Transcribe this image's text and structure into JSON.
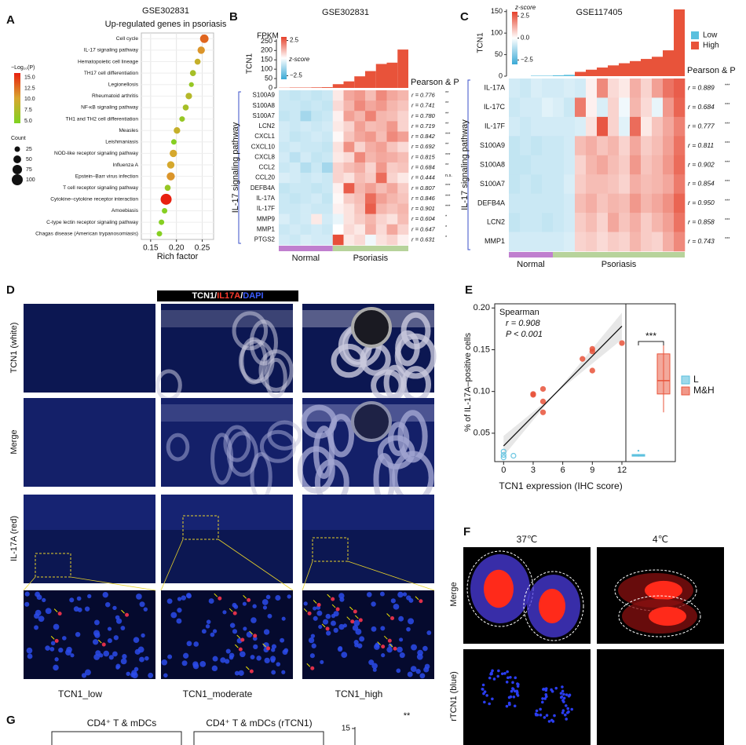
{
  "figure": {
    "panel_letters": [
      "A",
      "B",
      "C",
      "D",
      "E",
      "F",
      "G"
    ]
  },
  "chart_data": [
    {
      "type": "dot",
      "title": "GSE302831",
      "subtitle": "Up-regulated genes in psoriasis",
      "x_label": "Rich factor",
      "categories": [
        "Cell cycle",
        "IL-17 signaling pathway",
        "Hematopoietic cell lineage",
        "TH17 cell differentiation",
        "Legionellosis",
        "Rheumatoid arthritis",
        "NF-κB signaling pathway",
        "TH1 and TH2 cell differentiation",
        "Measles",
        "Leishmaniasis",
        "NOD-like receptor signaling pathway",
        "Influenza A",
        "Epstein–Barr virus infection",
        "T cell receptor signaling pathway",
        "Cytokine–cytokine receptor interaction",
        "Amoebiasis",
        "C-type lectin receptor signaling pathway",
        "Chagas disease (American trypanosomiasis)"
      ],
      "values": [
        0.254,
        0.248,
        0.241,
        0.232,
        0.229,
        0.224,
        0.218,
        0.211,
        0.201,
        0.195,
        0.194,
        0.189,
        0.189,
        0.183,
        0.18,
        0.177,
        0.171,
        0.167
      ],
      "sizes": [
        60,
        45,
        30,
        30,
        20,
        35,
        30,
        25,
        35,
        25,
        45,
        45,
        55,
        30,
        100,
        25,
        25,
        25
      ],
      "color_values": [
        13,
        11,
        9,
        7,
        6,
        8,
        7,
        6,
        9,
        5,
        10,
        10,
        11,
        6,
        16,
        5,
        5,
        5
      ],
      "xlim": [
        0.132,
        0.272
      ],
      "xticks": [
        {
          "value": 0.15,
          "label": "0.15"
        },
        {
          "value": 0.2,
          "label": "0.20"
        },
        {
          "value": 0.25,
          "label": "0.25"
        }
      ],
      "grid": true,
      "color_legend": {
        "title": "−Log₁₀(P)",
        "range": [
          4.5,
          16
        ],
        "colors": [
          "#7ed321",
          "#d9a62e",
          "#e8200f"
        ],
        "ticks": [
          {
            "value": 15,
            "label": "15.0"
          },
          {
            "value": 12.5,
            "label": "12.5"
          },
          {
            "value": 10,
            "label": "10.0"
          },
          {
            "value": 7.5,
            "label": "7.5"
          },
          {
            "value": 5,
            "label": "5.0"
          }
        ]
      },
      "size_legend": {
        "title": "Count",
        "ticks": [
          25,
          50,
          75,
          100
        ]
      }
    },
    {
      "type": "heatmap",
      "title": "GSE302831",
      "bar_label": "FPKM",
      "bar_axis_label": "TCN1",
      "bar_values": [
        1,
        2,
        2,
        3,
        4,
        20,
        35,
        62,
        90,
        128,
        135,
        205
      ],
      "bar_color": "#e8533a",
      "bar_ylim": [
        0,
        260
      ],
      "bar_yticks": [
        0,
        50,
        100,
        150,
        200,
        250
      ],
      "colorbar": {
        "title": "z-score",
        "range": [
          -3,
          3
        ],
        "ticks": [
          {
            "value": 2.5,
            "label": "2.5"
          },
          {
            "value": -2.5,
            "label": "−2.5"
          }
        ]
      },
      "rows": [
        "S100A9",
        "S100A8",
        "S100A7",
        "LCN2",
        "CXCL1",
        "CXCL10",
        "CXCL8",
        "CCL2",
        "CCL20",
        "DEFB4A",
        "IL-17A",
        "IL-17F",
        "MMP9",
        "MMP1",
        "PTGS2"
      ],
      "matrix": [
        [
          -0.7,
          -0.8,
          -0.7,
          -0.8,
          -0.7,
          0.3,
          1.2,
          1.4,
          0.9,
          1.6,
          1.2,
          1.0
        ],
        [
          -0.7,
          -0.7,
          -0.8,
          -0.7,
          -0.8,
          0.5,
          1.0,
          1.6,
          1.2,
          1.4,
          1.0,
          0.8
        ],
        [
          -0.8,
          -0.7,
          -1.2,
          -0.8,
          -0.7,
          0.2,
          1.3,
          1.0,
          1.7,
          1.0,
          0.9,
          0.6
        ],
        [
          -0.6,
          -0.7,
          -0.6,
          -0.7,
          -0.6,
          0.3,
          0.6,
          1.3,
          0.9,
          1.0,
          1.4,
          0.6
        ],
        [
          -0.6,
          -0.8,
          -0.7,
          -0.6,
          -0.7,
          0.1,
          0.8,
          1.2,
          1.4,
          0.9,
          1.6,
          1.3
        ],
        [
          -0.7,
          -0.6,
          -0.7,
          -0.7,
          -0.8,
          0.4,
          1.5,
          0.6,
          1.1,
          1.3,
          0.8,
          0.5
        ],
        [
          -0.6,
          -0.9,
          -0.6,
          -0.8,
          -0.7,
          0.3,
          0.5,
          1.6,
          1.0,
          1.2,
          1.1,
          0.9
        ],
        [
          -0.7,
          -0.6,
          -1.0,
          -0.7,
          -1.2,
          0.6,
          0.9,
          1.1,
          0.6,
          1.4,
          0.7,
          0.8
        ],
        [
          -0.5,
          -0.6,
          -0.7,
          -0.6,
          -0.7,
          0.6,
          0.4,
          0.9,
          0.7,
          2.0,
          0.6,
          0.3
        ],
        [
          -0.8,
          -0.7,
          -0.7,
          -0.8,
          -0.7,
          0.2,
          2.2,
          1.0,
          1.3,
          0.9,
          1.2,
          0.7
        ],
        [
          -0.7,
          -0.8,
          -0.7,
          -0.6,
          -0.8,
          0.1,
          0.7,
          0.9,
          2.0,
          1.3,
          1.0,
          0.8
        ],
        [
          -0.7,
          -0.7,
          -0.6,
          -0.7,
          -0.7,
          0.2,
          0.4,
          0.8,
          2.2,
          1.0,
          0.8,
          1.0
        ],
        [
          -0.5,
          -0.7,
          -0.6,
          0.3,
          -0.6,
          -0.3,
          0.4,
          0.7,
          1.0,
          0.6,
          0.4,
          0.9
        ],
        [
          -0.7,
          -0.6,
          -0.7,
          -0.6,
          -0.7,
          0.0,
          0.5,
          0.3,
          1.1,
          0.5,
          1.2,
          0.6
        ],
        [
          -0.6,
          -0.7,
          -0.5,
          -0.6,
          -0.6,
          2.4,
          0.3,
          0.5,
          -0.2,
          0.4,
          0.6,
          0.2
        ]
      ],
      "row_group": "IL-17 signaling pathway",
      "groups": [
        {
          "name": "Normal",
          "count": 5,
          "color": "#c07fcf"
        },
        {
          "name": "Psoriasis",
          "count": 7,
          "color": "#b7d39b"
        }
      ],
      "stat_title": "Pearson & P",
      "r_labels": [
        "r = 0.776",
        "r = 0.741",
        "r = 0.780",
        "r = 0.719",
        "r = 0.842",
        "r = 0.692",
        "r = 0.815",
        "r = 0.684",
        "r = 0.444",
        "r = 0.807",
        "r = 0.846",
        "r = 0.901",
        "r = 0.604",
        "r = 0.647",
        "r = 0.631"
      ],
      "sig": [
        "**",
        "**",
        "**",
        "**",
        "***",
        "**",
        "***",
        "**",
        "n.s.",
        "***",
        "***",
        "***",
        "*",
        "*",
        "*"
      ]
    },
    {
      "type": "heatmap",
      "title": "GSE117405",
      "bar_axis_label": "TCN1",
      "bar_values": [
        0,
        0,
        1,
        1,
        2,
        3,
        10,
        15,
        20,
        25,
        30,
        35,
        40,
        45,
        60,
        155
      ],
      "bar_levels": [
        0,
        0,
        0,
        0,
        0,
        0,
        1,
        1,
        1,
        1,
        1,
        1,
        1,
        1,
        1,
        1
      ],
      "levels": [
        {
          "name": "Low",
          "color": "#5bc0de"
        },
        {
          "name": "High",
          "color": "#e8533a"
        }
      ],
      "bar_ylim": [
        0,
        155
      ],
      "bar_yticks": [
        0,
        50,
        100,
        150
      ],
      "colorbar": {
        "title": "z-score",
        "range": [
          -3,
          3
        ],
        "ticks": [
          {
            "value": 2.5,
            "label": "2.5"
          },
          {
            "value": 0,
            "label": "0.0"
          },
          {
            "value": -2.5,
            "label": "−2.5"
          }
        ]
      },
      "rows": [
        "IL-17A",
        "IL-17C",
        "IL-17F",
        "S100A9",
        "S100A8",
        "S100A7",
        "DEFB4A",
        "LCN2",
        "MMP1"
      ],
      "matrix": [
        [
          -0.6,
          -0.7,
          -0.5,
          -0.6,
          -0.6,
          -0.5,
          -0.6,
          0.2,
          1.6,
          0.5,
          0.3,
          1.1,
          0.6,
          1.3,
          1.9,
          2.2
        ],
        [
          -0.7,
          -0.6,
          -0.6,
          -0.4,
          -0.5,
          -0.7,
          1.8,
          0.2,
          -0.5,
          0.6,
          -0.2,
          1.0,
          0.5,
          -0.3,
          1.4,
          2.1
        ],
        [
          -0.6,
          -0.7,
          -0.6,
          -0.6,
          -0.6,
          -0.6,
          -0.5,
          0.4,
          2.3,
          0.6,
          -0.4,
          2.0,
          0.3,
          0.8,
          1.2,
          1.7
        ],
        [
          -0.8,
          -0.7,
          -0.8,
          -0.7,
          -0.7,
          -0.6,
          0.9,
          1.1,
          0.8,
          1.0,
          0.6,
          1.2,
          0.7,
          0.9,
          1.3,
          1.9
        ],
        [
          -0.8,
          -0.8,
          -0.7,
          -0.7,
          -0.7,
          -0.6,
          0.6,
          1.0,
          1.2,
          0.9,
          0.7,
          1.4,
          0.8,
          1.0,
          1.4,
          2.0
        ],
        [
          -0.8,
          -0.7,
          -0.8,
          -0.7,
          -0.7,
          -0.5,
          0.7,
          0.9,
          0.9,
          0.8,
          0.6,
          1.1,
          0.9,
          1.0,
          1.2,
          1.8
        ],
        [
          -0.7,
          -0.7,
          -0.7,
          -0.7,
          -0.7,
          -0.6,
          0.9,
          1.1,
          0.8,
          1.0,
          0.9,
          1.4,
          1.0,
          1.2,
          1.5,
          2.1
        ],
        [
          -0.8,
          -0.7,
          -0.7,
          -0.8,
          -0.7,
          -0.6,
          0.7,
          0.9,
          0.6,
          1.2,
          0.8,
          1.1,
          0.7,
          1.0,
          1.3,
          1.9
        ],
        [
          -0.6,
          -0.6,
          -0.6,
          -0.6,
          -0.6,
          -0.5,
          0.6,
          0.7,
          0.5,
          0.7,
          0.6,
          1.0,
          0.7,
          0.6,
          1.1,
          1.6
        ]
      ],
      "row_group": "IL-17 signaling pathway",
      "groups": [
        {
          "name": "Normal",
          "count": 4,
          "color": "#c07fcf"
        },
        {
          "name": "Psoriasis",
          "count": 12,
          "color": "#b7d39b"
        }
      ],
      "stat_title": "Pearson & P",
      "r_labels": [
        "r = 0.889",
        "r = 0.684",
        "r = 0.777",
        "r = 0.811",
        "r = 0.902",
        "r = 0.854",
        "r = 0.950",
        "r = 0.858",
        "r = 0.743"
      ],
      "sig": [
        "***",
        "***",
        "***",
        "***",
        "***",
        "***",
        "***",
        "***",
        "***"
      ]
    },
    {
      "type": "scatter",
      "x_label": "TCN1 expression (IHC score)",
      "y_label": "% of IL-17A–positive cells",
      "x": [
        0,
        0,
        0,
        1,
        3,
        3,
        4,
        4,
        4,
        8,
        9,
        9,
        9,
        12
      ],
      "y": [
        0.028,
        0.024,
        0.021,
        0.023,
        0.097,
        0.096,
        0.103,
        0.088,
        0.075,
        0.139,
        0.151,
        0.148,
        0.125,
        0.158
      ],
      "point_groups": [
        0,
        0,
        0,
        0,
        1,
        1,
        1,
        1,
        1,
        1,
        1,
        1,
        1,
        1
      ],
      "xlim": [
        -0.9,
        12.4
      ],
      "xticks": [
        0,
        3,
        6,
        9,
        12
      ],
      "ylim": [
        0.016,
        0.205
      ],
      "yticks": [
        {
          "value": 0.05,
          "label": "0.05"
        },
        {
          "value": 0.1,
          "label": "0.10"
        },
        {
          "value": 0.15,
          "label": "0.15"
        },
        {
          "value": 0.2,
          "label": "0.20"
        }
      ],
      "annotations": [
        "Spearman",
        "r = 0.908",
        "P < 0.001"
      ],
      "boxes": [
        {
          "name": "L",
          "color": "#5bc0de",
          "whisker": [
            0.022,
            0.025
          ],
          "box": [
            0.0225,
            0.0245
          ],
          "median": 0.0235,
          "outliers": [
            0.029
          ]
        },
        {
          "name": "M&H",
          "color": "#e8533a",
          "whisker": [
            0.075,
            0.158
          ],
          "box": [
            0.097,
            0.145
          ],
          "median": 0.113,
          "outliers": []
        }
      ],
      "significance": "***"
    }
  ],
  "panel_d": {
    "stain_title": [
      {
        "text": "TCN1",
        "color": "#ffffff"
      },
      {
        "text": "/",
        "color": "#ffffff"
      },
      {
        "text": "IL17A",
        "color": "#ff3b2f"
      },
      {
        "text": "/",
        "color": "#ffffff"
      },
      {
        "text": "DAPI",
        "color": "#3b5bff"
      }
    ],
    "row_labels": [
      "TCN1 (white)",
      "Merge",
      "IL-17A (red)"
    ],
    "column_labels": [
      "TCN1_low",
      "TCN1_moderate",
      "TCN1_high"
    ]
  },
  "panel_f": {
    "column_labels": [
      "37℃",
      "4℃"
    ],
    "row_labels": [
      "Merge",
      "rTCN1 (blue)"
    ]
  },
  "panel_g": {
    "titles": [
      "CD4⁺ T & mDCs",
      "CD4⁺ T & mDCs (rTCN1)"
    ],
    "tick": "15",
    "significance": "**"
  }
}
